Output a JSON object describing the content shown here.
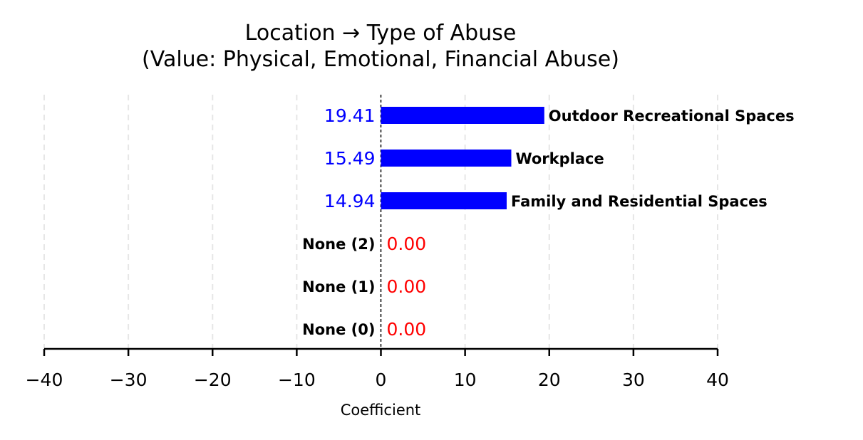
{
  "chart_data": {
    "type": "bar",
    "orientation": "horizontal",
    "title_line1": "Location → Type of Abuse",
    "title_line2": "(Value: Physical, Emotional, Financial Abuse)",
    "xlabel": "Coefficient",
    "ylabel": "",
    "xlim": [
      -40,
      40
    ],
    "xticks": [
      -40,
      -30,
      -20,
      -10,
      0,
      10,
      20,
      30,
      40
    ],
    "xtick_labels": [
      "−40",
      "−30",
      "−20",
      "−10",
      "0",
      "10",
      "20",
      "30",
      "40"
    ],
    "grid": "vertical dashed",
    "categories": [
      "Outdoor Recreational Spaces",
      "Workplace",
      "Family and Residential Spaces",
      "None (2)",
      "None (1)",
      "None (0)"
    ],
    "values": [
      19.41,
      15.49,
      14.94,
      0.0,
      0.0,
      0.0
    ],
    "value_labels": [
      "19.41",
      "15.49",
      "14.94",
      "0.00",
      "0.00",
      "0.00"
    ],
    "colors": {
      "bar": "#0000ff",
      "positive_label": "#0000ff",
      "zero_label": "#ff0000",
      "grid": "#e6e6e6",
      "axis": "#000000"
    }
  }
}
